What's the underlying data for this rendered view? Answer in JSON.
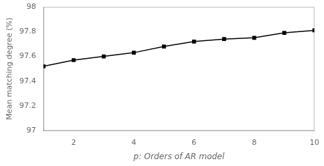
{
  "chart_data": {
    "type": "line",
    "x": [
      1,
      2,
      3,
      4,
      5,
      6,
      7,
      8,
      9,
      10
    ],
    "values": [
      97.52,
      97.57,
      97.6,
      97.63,
      97.68,
      97.72,
      97.74,
      97.75,
      97.79,
      97.81
    ],
    "xlim": [
      1,
      10
    ],
    "ylim": [
      97.0,
      98.0
    ],
    "xticks": [
      2,
      4,
      6,
      8,
      10
    ],
    "yticks": [
      97.0,
      97.2,
      97.4,
      97.6,
      97.8,
      98.0
    ],
    "xlabel": "p: Orders of AR model",
    "ylabel": "Mean matching degree (%)",
    "color": "#000000",
    "marker": "square",
    "line_style": "solid",
    "grid": false
  }
}
